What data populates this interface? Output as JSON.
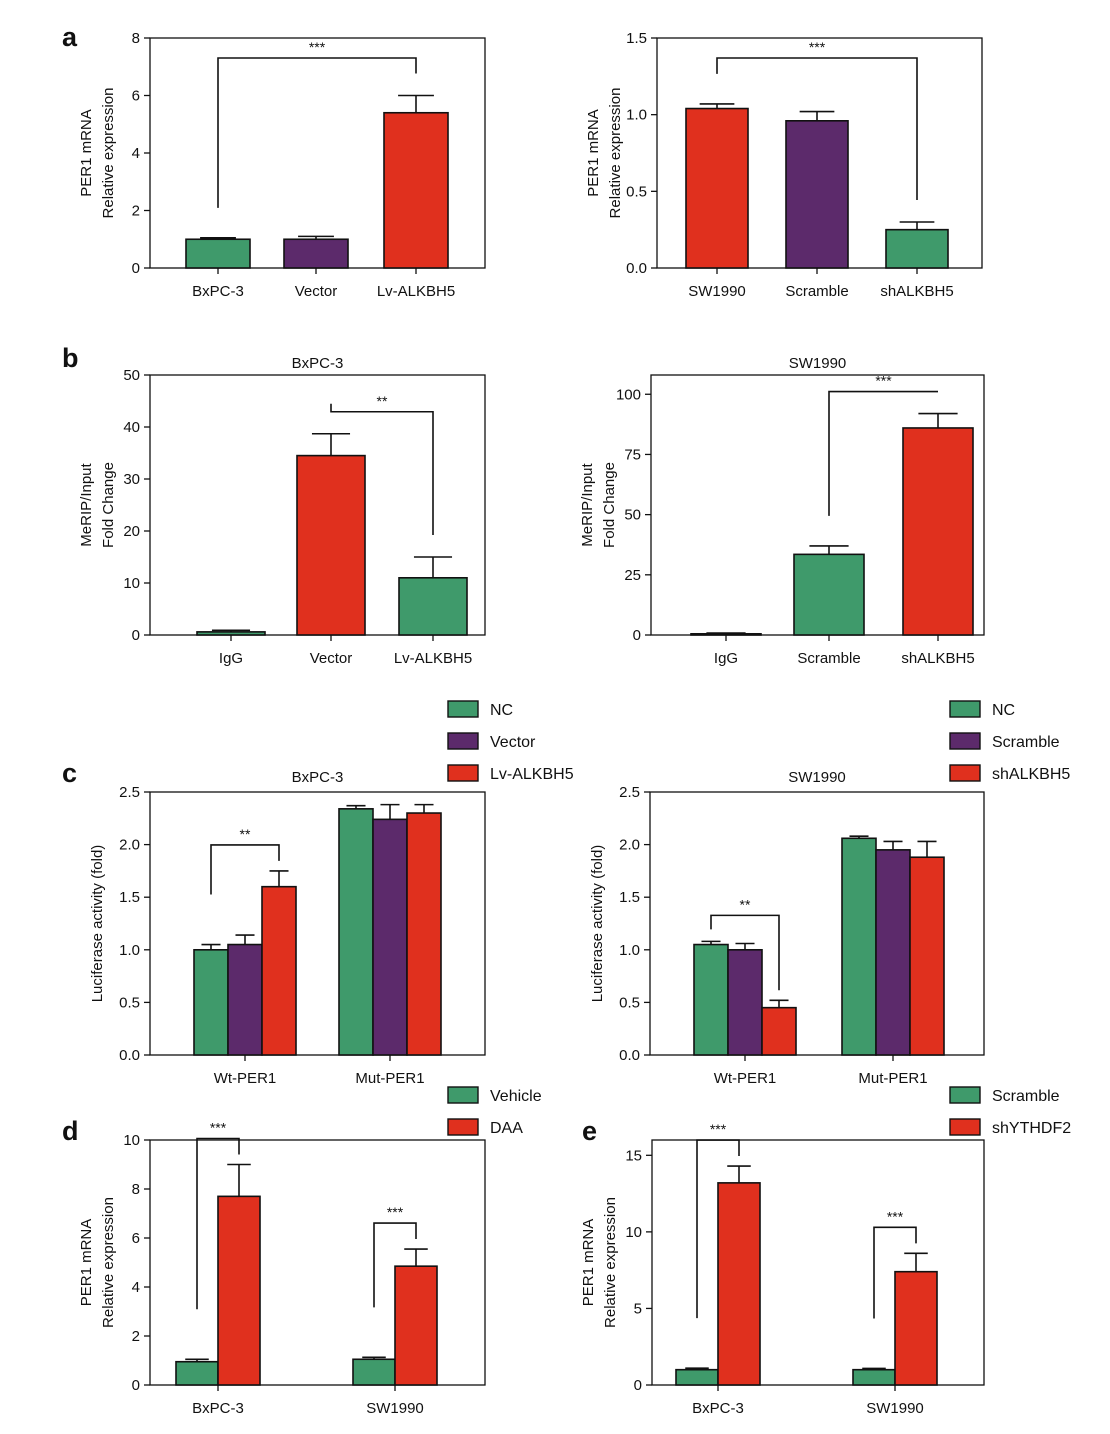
{
  "colors": {
    "green": "#3f9a6b",
    "purple": "#5c2a6b",
    "red": "#e0301e",
    "axis": "#111111"
  },
  "chart_data": [
    {
      "id": "a-left",
      "panel_letter": "a",
      "type": "bar",
      "title": "",
      "ylabel": [
        "PER1 mRNA",
        "Relative expression"
      ],
      "ylim": [
        0,
        8
      ],
      "yticks": [
        "0",
        "2",
        "4",
        "6",
        "8"
      ],
      "categories": [
        "BxPC-3",
        "Vector",
        "Lv-ALKBH5"
      ],
      "values": [
        1.0,
        1.0,
        5.4
      ],
      "errors": [
        0.05,
        0.1,
        0.6
      ],
      "bar_colors": [
        "green",
        "purple",
        "red"
      ],
      "significance": [
        {
          "from": 0,
          "to": 2,
          "label": "***"
        }
      ]
    },
    {
      "id": "a-right",
      "panel_letter": "",
      "type": "bar",
      "title": "",
      "ylabel": [
        "PER1 mRNA",
        "Relative expression"
      ],
      "ylim": [
        0,
        1.5
      ],
      "yticks": [
        "0.0",
        "0.5",
        "1.0",
        "1.5"
      ],
      "categories": [
        "SW1990",
        "Scramble",
        "shALKBH5"
      ],
      "values": [
        1.04,
        0.96,
        0.25
      ],
      "errors": [
        0.03,
        0.06,
        0.05
      ],
      "bar_colors": [
        "red",
        "purple",
        "green"
      ],
      "significance": [
        {
          "from": 0,
          "to": 2,
          "label": "***"
        }
      ]
    },
    {
      "id": "b-left",
      "panel_letter": "b",
      "type": "bar",
      "title": "BxPC-3",
      "ylabel": [
        "MeRIP/Input",
        "Fold Change"
      ],
      "ylim": [
        0,
        50
      ],
      "yticks": [
        "0",
        "10",
        "20",
        "30",
        "40",
        "50"
      ],
      "categories": [
        "IgG",
        "Vector",
        "Lv-ALKBH5"
      ],
      "values": [
        0.6,
        34.5,
        11.0
      ],
      "errors": [
        0.3,
        4.2,
        4.0
      ],
      "bar_colors": [
        "green",
        "red",
        "green"
      ],
      "significance": [
        {
          "from": 1,
          "to": 2,
          "label": "**"
        }
      ]
    },
    {
      "id": "b-right",
      "panel_letter": "",
      "type": "bar",
      "title": "SW1990",
      "ylabel": [
        "MeRIP/Input",
        "Fold Change"
      ],
      "ylim": [
        0,
        108
      ],
      "yticks": [
        "0",
        "25",
        "50",
        "75",
        "100"
      ],
      "ytick_values": [
        0,
        25,
        50,
        75,
        100
      ],
      "categories": [
        "IgG",
        "Scramble",
        "shALKBH5"
      ],
      "values": [
        0.5,
        33.5,
        86.0
      ],
      "errors": [
        0.3,
        3.5,
        6.0
      ],
      "bar_colors": [
        "green",
        "green",
        "red"
      ],
      "significance": [
        {
          "from": 1,
          "to": 2,
          "label": "***"
        }
      ]
    },
    {
      "id": "c-left",
      "panel_letter": "c",
      "type": "bar",
      "title": "BxPC-3",
      "ylabel": [
        "Luciferase activity (fold)"
      ],
      "ylim": [
        0,
        2.5
      ],
      "yticks": [
        "0.0",
        "0.5",
        "1.0",
        "1.5",
        "2.0",
        "2.5"
      ],
      "categories": [
        "Wt-PER1",
        "Mut-PER1"
      ],
      "series": [
        {
          "name": "NC",
          "color": "green",
          "values": [
            1.0,
            2.34
          ],
          "errors": [
            0.05,
            0.03
          ]
        },
        {
          "name": "Vector",
          "color": "purple",
          "values": [
            1.05,
            2.24
          ],
          "errors": [
            0.09,
            0.14
          ]
        },
        {
          "name": "Lv-ALKBH5",
          "color": "red",
          "values": [
            1.6,
            2.3
          ],
          "errors": [
            0.15,
            0.08
          ]
        }
      ],
      "legend_position": "top-right",
      "significance": [
        {
          "group": 0,
          "from": 0,
          "to": 2,
          "label": "**"
        }
      ]
    },
    {
      "id": "c-right",
      "panel_letter": "",
      "type": "bar",
      "title": "SW1990",
      "ylabel": [
        "Luciferase activity (fold)"
      ],
      "ylim": [
        0,
        2.5
      ],
      "yticks": [
        "0.0",
        "0.5",
        "1.0",
        "1.5",
        "2.0",
        "2.5"
      ],
      "categories": [
        "Wt-PER1",
        "Mut-PER1"
      ],
      "series": [
        {
          "name": "NC",
          "color": "green",
          "values": [
            1.05,
            2.06
          ],
          "errors": [
            0.03,
            0.02
          ]
        },
        {
          "name": "Scramble",
          "color": "purple",
          "values": [
            1.0,
            1.95
          ],
          "errors": [
            0.06,
            0.08
          ]
        },
        {
          "name": "shALKBH5",
          "color": "red",
          "values": [
            0.45,
            1.88
          ],
          "errors": [
            0.07,
            0.15
          ]
        }
      ],
      "legend_position": "top-right",
      "significance": [
        {
          "group": 0,
          "from": 0,
          "to": 2,
          "label": "**"
        }
      ]
    },
    {
      "id": "d",
      "panel_letter": "d",
      "type": "bar",
      "title": "",
      "ylabel": [
        "PER1 mRNA",
        "Relative expression"
      ],
      "ylim": [
        0,
        10
      ],
      "yticks": [
        "0",
        "2",
        "4",
        "6",
        "8",
        "10"
      ],
      "categories": [
        "BxPC-3",
        "SW1990"
      ],
      "series": [
        {
          "name": "Vehicle",
          "color": "green",
          "values": [
            0.95,
            1.05
          ],
          "errors": [
            0.1,
            0.08
          ]
        },
        {
          "name": "DAA",
          "color": "red",
          "values": [
            7.7,
            4.85
          ],
          "errors": [
            1.3,
            0.7
          ]
        }
      ],
      "legend_position": "top-right",
      "significance": [
        {
          "group": 0,
          "from": 0,
          "to": 1,
          "label": "***"
        },
        {
          "group": 1,
          "from": 0,
          "to": 1,
          "label": "***"
        }
      ]
    },
    {
      "id": "e",
      "panel_letter": "e",
      "type": "bar",
      "title": "",
      "ylabel": [
        "PER1 mRNA",
        "Relative expression"
      ],
      "ylim": [
        0,
        16
      ],
      "yticks": [
        "0",
        "5",
        "10",
        "15"
      ],
      "ytick_values": [
        0,
        5,
        10,
        15
      ],
      "categories": [
        "BxPC-3",
        "SW1990"
      ],
      "series": [
        {
          "name": "Scramble",
          "color": "green",
          "values": [
            1.0,
            1.0
          ],
          "errors": [
            0.1,
            0.08
          ]
        },
        {
          "name": "shYTHDF2",
          "color": "red",
          "values": [
            13.2,
            7.4
          ],
          "errors": [
            1.1,
            1.2
          ]
        }
      ],
      "legend_position": "top-right",
      "significance": [
        {
          "group": 0,
          "from": 0,
          "to": 1,
          "label": "***"
        },
        {
          "group": 1,
          "from": 0,
          "to": 1,
          "label": "***"
        }
      ]
    }
  ]
}
